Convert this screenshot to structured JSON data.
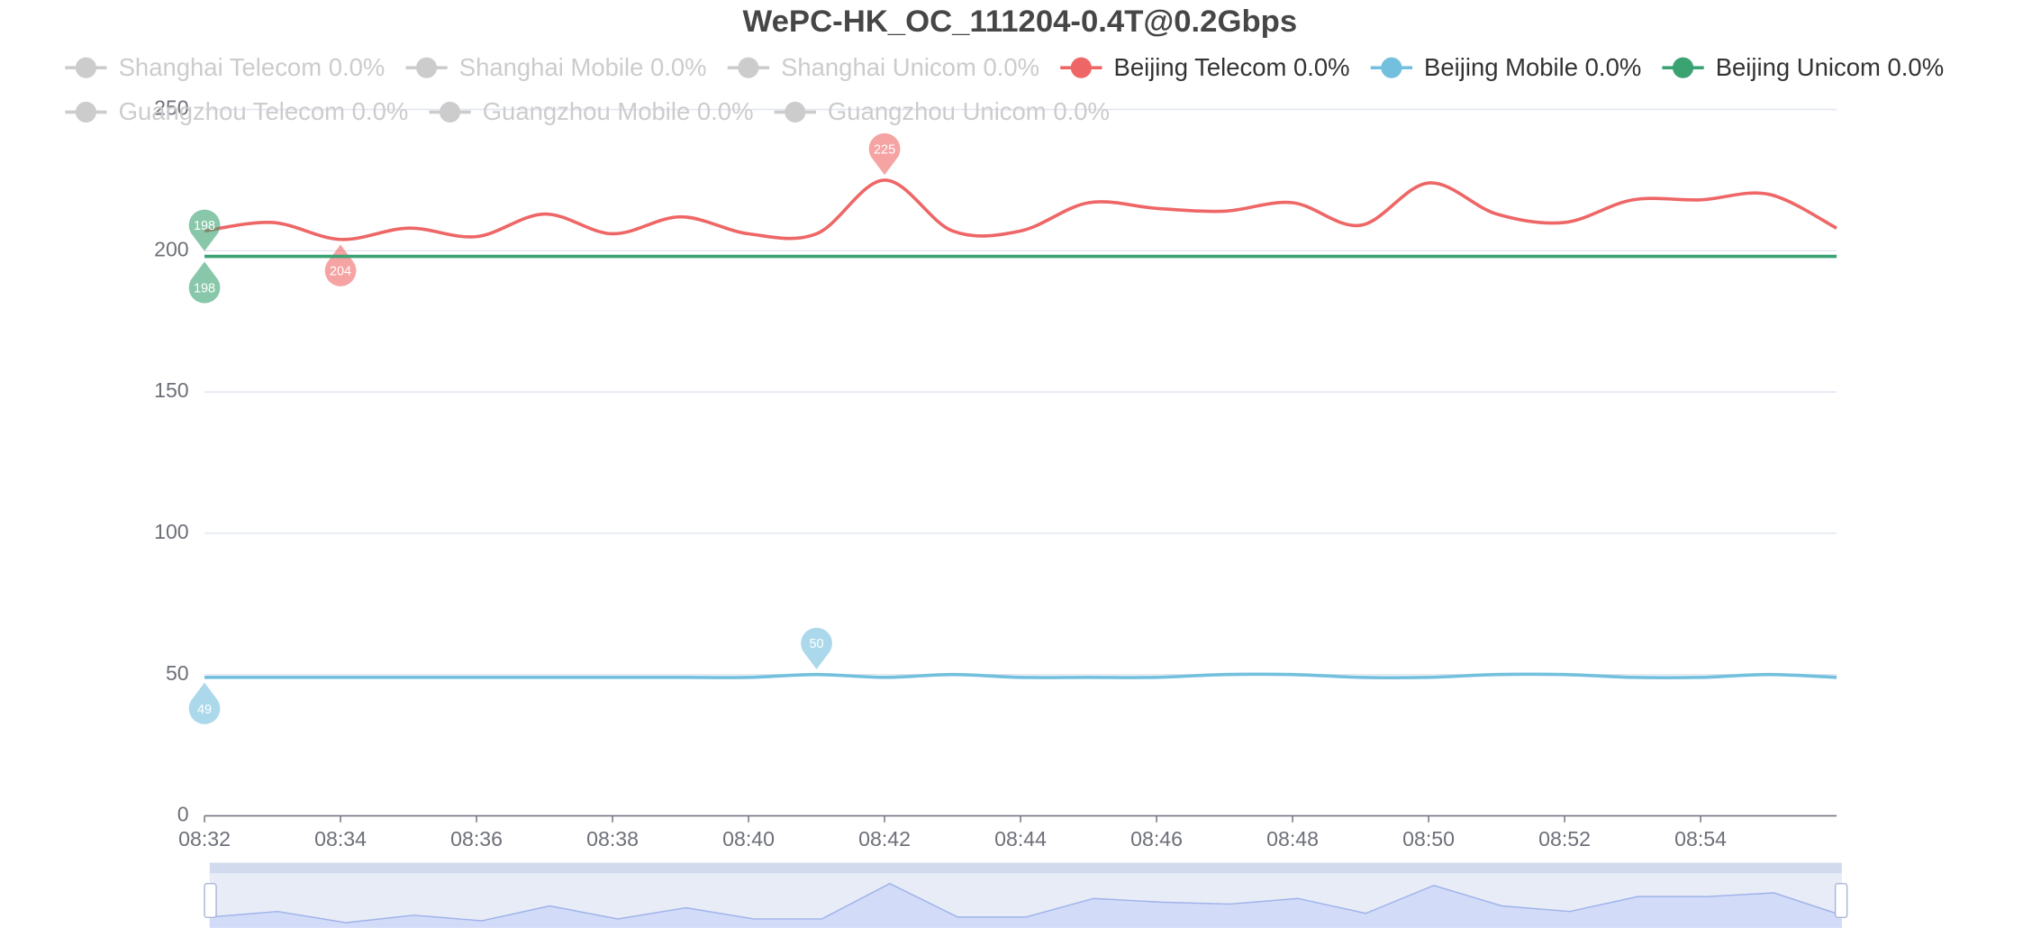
{
  "chart_data": {
    "type": "line",
    "title": "WePC-HK_OC_111204-0.4T@0.2Gbps",
    "categories": [
      "08:32",
      null,
      "08:34",
      null,
      "08:36",
      null,
      "08:38",
      null,
      "08:40",
      null,
      "08:42",
      null,
      "08:44",
      null,
      "08:46",
      null,
      "08:48",
      null,
      "08:50",
      null,
      "08:52",
      null,
      "08:54",
      null,
      null
    ],
    "ylim": [
      0,
      250
    ],
    "yticks": [
      0,
      50,
      100,
      150,
      200,
      250
    ],
    "grid": true,
    "smooth": true,
    "series": [
      {
        "name": "Shanghai Telecom 0.0%",
        "color": "#cccccc",
        "hidden": true
      },
      {
        "name": "Shanghai Mobile 0.0%",
        "color": "#cccccc",
        "hidden": true
      },
      {
        "name": "Shanghai Unicom 0.0%",
        "color": "#cccccc",
        "hidden": true
      },
      {
        "name": "Beijing Telecom 0.0%",
        "color": "#ee6666",
        "mark_points": [
          "max",
          "min"
        ],
        "values": [
          207,
          210,
          204,
          208,
          205,
          213,
          206,
          212,
          206,
          206,
          225,
          207,
          207,
          217,
          215,
          214,
          217,
          209,
          224,
          213,
          210,
          218,
          218,
          220,
          208
        ]
      },
      {
        "name": "Beijing Mobile 0.0%",
        "color": "#73c0de",
        "mark_points": [
          "max",
          "min"
        ],
        "values": [
          49,
          49,
          49,
          49,
          49,
          49,
          49,
          49,
          49,
          50,
          49,
          50,
          49,
          49,
          49,
          50,
          50,
          49,
          49,
          50,
          50,
          49,
          49,
          50,
          49
        ]
      },
      {
        "name": "Beijing Unicom 0.0%",
        "color": "#3ba272",
        "mark_points": [
          "max",
          "min"
        ],
        "values": [
          198,
          198,
          198,
          198,
          198,
          198,
          198,
          198,
          198,
          198,
          198,
          198,
          198,
          198,
          198,
          198,
          198,
          198,
          198,
          198,
          198,
          198,
          198,
          198,
          198
        ]
      },
      {
        "name": "Guangzhou Telecom 0.0%",
        "color": "#cccccc",
        "hidden": true
      },
      {
        "name": "Guangzhou Mobile 0.0%",
        "color": "#cccccc",
        "hidden": true
      },
      {
        "name": "Guangzhou Unicom 0.0%",
        "color": "#cccccc",
        "hidden": true
      }
    ],
    "data_zoom": {
      "shadow_series": 3
    }
  }
}
